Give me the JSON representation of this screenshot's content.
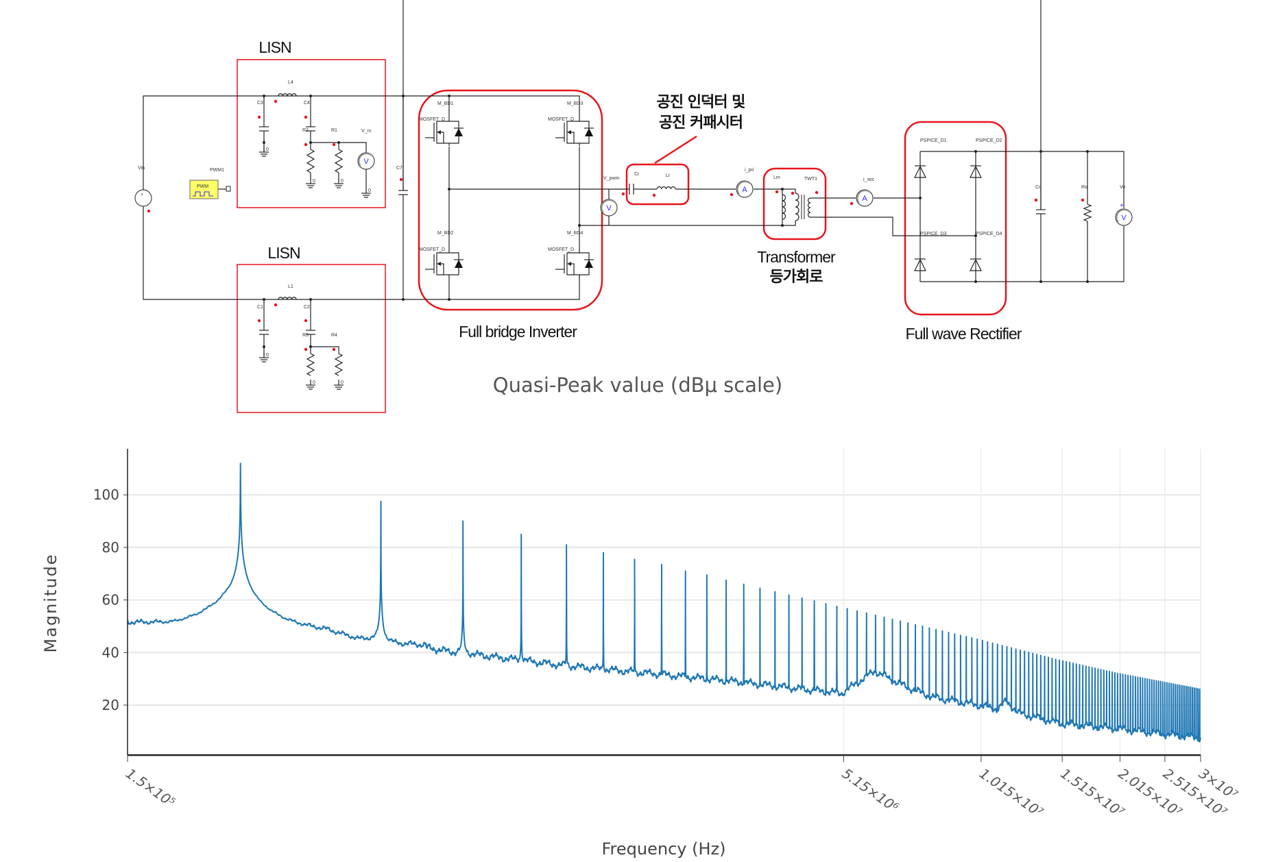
{
  "circuit": {
    "blocks": {
      "lisn_top": "LISN",
      "lisn_bottom": "LISN",
      "inverter": "Full bridge Inverter",
      "resonant_line1": "공진 인덕터 및",
      "resonant_line2": "공진 커패시터",
      "transformer_line1": "Transformer",
      "transformer_line2": "등가회로",
      "rectifier": "Full wave Rectifier"
    },
    "labels": {
      "L4": "L4",
      "C3": "C3",
      "C4": "C4",
      "R2": "R2",
      "R1": "R1",
      "V_rx": "V_rx",
      "Vin": "Vin",
      "PWM1": "PWM1",
      "PWM": "PWM",
      "C7": "C7",
      "M_BD1": "M_BD1",
      "M_BD2": "M_BD2",
      "M_BD3": "M_BD3",
      "M_BD4": "M_BD4",
      "MOSFET_D": "MOSFET_D",
      "V_pwm": "V_pwm",
      "Cr": "Cr",
      "Lr": "Lr",
      "i_pri": "i_pri",
      "Lm": "Lm",
      "TWT1": "TWT1",
      "i_sec": "i_sec",
      "D1": "PSPICE_D1",
      "D2": "PSPICE_D2",
      "D3": "PSPICE_D3",
      "D4": "PSPICE_D4",
      "Co": "Co",
      "Ro": "Ro",
      "Vo": "Vo",
      "L1": "L1",
      "C1": "C1",
      "C2": "C2",
      "R3": "R3",
      "R4": "R4",
      "ground": "0",
      "voltmeter": "V",
      "ammeter": "A"
    },
    "colors": {
      "highlight": "#e8141b",
      "pwm_fill": "#ffff66",
      "probe": "#e8141b",
      "meter": "#2a2aff"
    }
  },
  "chart_data": {
    "type": "line",
    "title": "Quasi-Peak value (dBμ scale)",
    "xlabel": "Frequency (Hz)",
    "ylabel": "Magnitude",
    "xscale": "log",
    "xlim": [
      150000,
      30000000
    ],
    "ylim": [
      1,
      117
    ],
    "grid": true,
    "color": "#1f77b4",
    "yticks": [
      20,
      40,
      60,
      80,
      100
    ],
    "xticks": [
      150000,
      5150000,
      10150000,
      15150000,
      20150000,
      25150000,
      30000000
    ],
    "xtick_labels": [
      "1.5×10⁵",
      "5.15×10⁶",
      "1.015×10⁷",
      "1.515×10⁷",
      "2.015×10⁷",
      "2.515×10⁷",
      "3×10⁷"
    ],
    "series": [
      {
        "name": "Quasi-Peak",
        "fundamental_hz": 262000,
        "harmonic_peaks_db": [
          112,
          97.5,
          90,
          85,
          81,
          78,
          75.5,
          73.5,
          71,
          69.5,
          67.5,
          66
        ],
        "peak_envelope": [
          [
            3400000,
            64.5
          ],
          [
            5150000,
            57
          ],
          [
            10000000,
            45
          ],
          [
            15000000,
            37
          ],
          [
            20000000,
            32
          ],
          [
            30000000,
            26
          ]
        ],
        "noise_floor": [
          [
            150000,
            50
          ],
          [
            170000,
            49
          ],
          [
            190000,
            47
          ],
          [
            210000,
            48.5
          ],
          [
            230000,
            53
          ],
          [
            245000,
            57
          ],
          [
            300000,
            50
          ],
          [
            330000,
            48
          ],
          [
            400000,
            47
          ],
          [
            470000,
            43
          ],
          [
            500000,
            43.5
          ],
          [
            560000,
            42
          ],
          [
            650000,
            42
          ],
          [
            750000,
            40
          ],
          [
            850000,
            39
          ],
          [
            1000000,
            37.5
          ],
          [
            1300000,
            35
          ],
          [
            2000000,
            32
          ],
          [
            3000000,
            29
          ],
          [
            4000000,
            26.5
          ],
          [
            5100000,
            24.5
          ],
          [
            6000000,
            33
          ],
          [
            7000000,
            27
          ],
          [
            8000000,
            23
          ],
          [
            10000000,
            20
          ],
          [
            11000000,
            18.5
          ],
          [
            11500000,
            21.5
          ],
          [
            12200000,
            17
          ],
          [
            15000000,
            13
          ],
          [
            20000000,
            11
          ],
          [
            25000000,
            9
          ],
          [
            30000000,
            7.5
          ]
        ]
      }
    ]
  }
}
